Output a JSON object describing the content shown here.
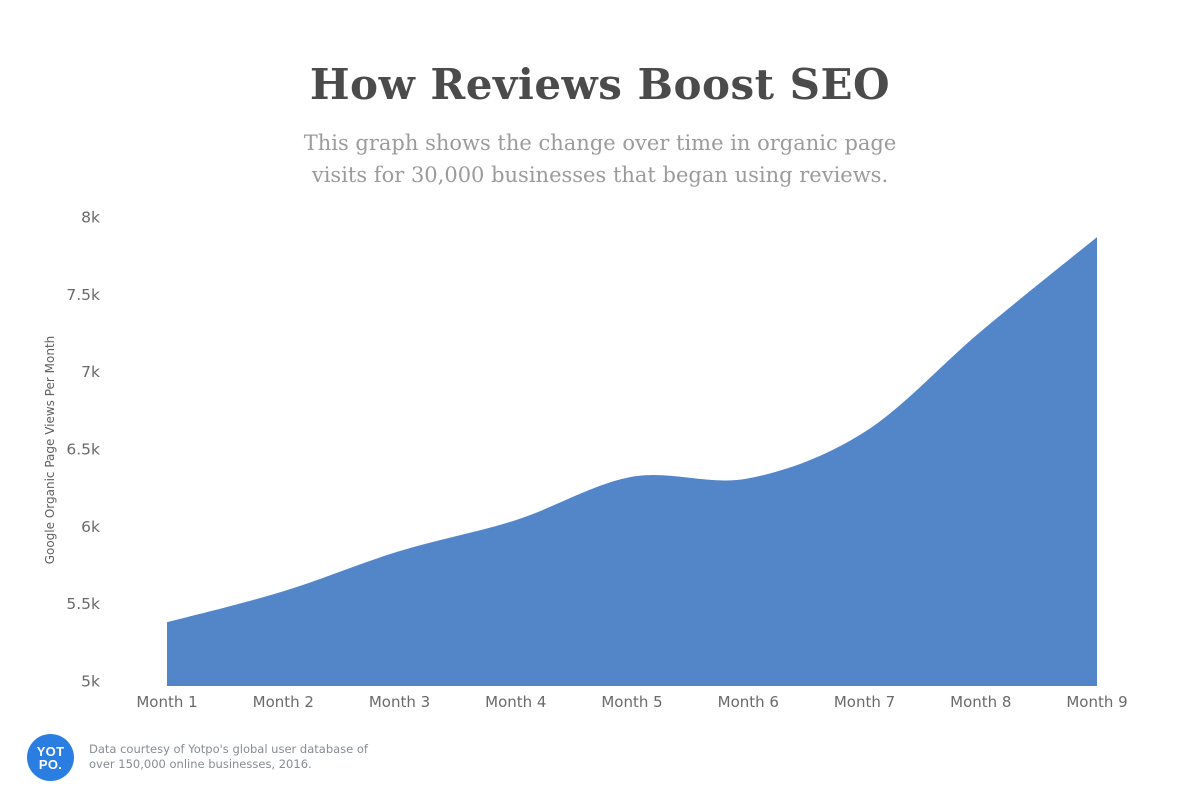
{
  "header": {
    "title": "How Reviews Boost SEO",
    "subtitle_line1": "This graph shows the change over time in organic page",
    "subtitle_line2": "visits for 30,000 businesses that began using reviews."
  },
  "chart_data": {
    "type": "area",
    "title": "How Reviews Boost SEO",
    "categories": [
      "Month 1",
      "Month 2",
      "Month 3",
      "Month 4",
      "Month 5",
      "Month 6",
      "Month 7",
      "Month 8",
      "Month 9"
    ],
    "values": [
      5.38,
      5.58,
      5.84,
      6.04,
      6.32,
      6.31,
      6.61,
      7.26,
      7.87
    ],
    "unit": "k",
    "xlabel": "",
    "ylabel": "Google Organic Page Views Per Month",
    "ylim": [
      5,
      8
    ],
    "yticks": {
      "values": [
        8,
        7.5,
        7,
        6.5,
        6,
        5.5,
        5
      ],
      "labels": [
        "8k",
        "7.5k",
        "7k",
        "6.5k",
        "6k",
        "5.5k",
        "5k"
      ]
    },
    "grid": false,
    "legend": "none",
    "colors": {
      "area_fill": "#5386C8",
      "tick_text": "#6a6a6a",
      "axis_title_text": "#5f5f5f"
    }
  },
  "footer": {
    "logo_line1": "YOT",
    "logo_line2": "PO.",
    "logo_color": "#2A7DE1",
    "attribution_line1": "Data courtesy of Yotpo's global user database of",
    "attribution_line2": "over 150,000 online businesses, 2016."
  }
}
